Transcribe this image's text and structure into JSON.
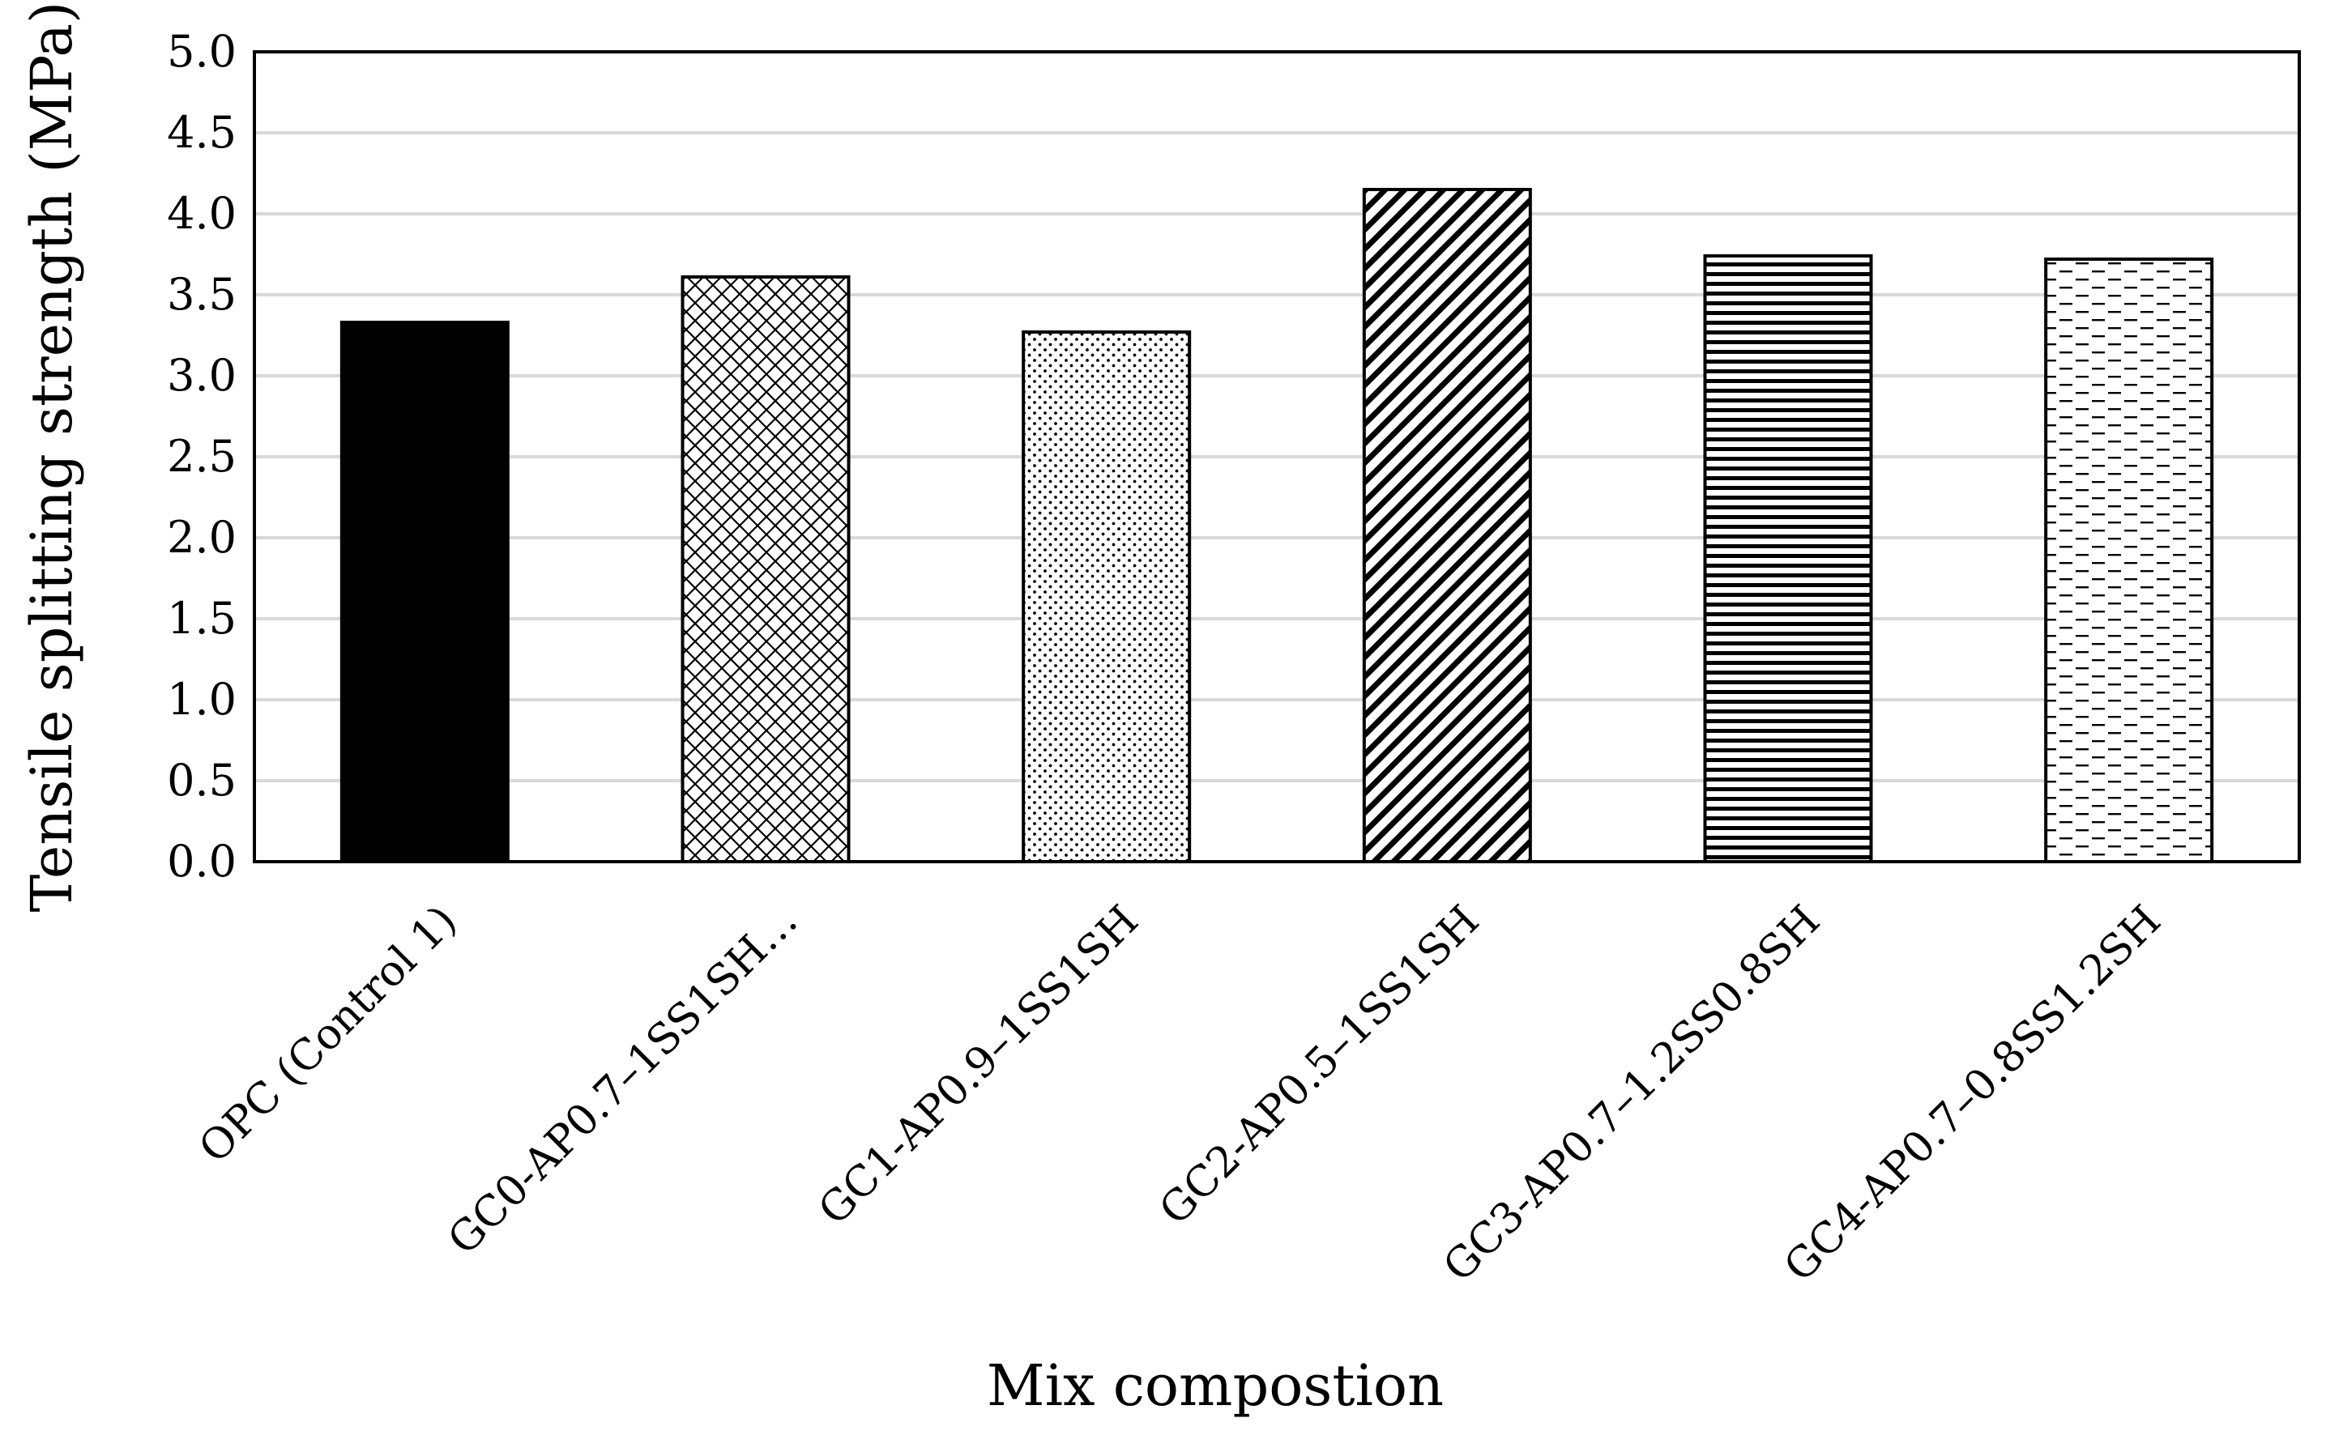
{
  "chart_data": {
    "type": "bar",
    "title": "",
    "xlabel": "Mix compostion",
    "ylabel": "Tensile splitting strength (MPa)",
    "ylim": [
      0,
      5.0
    ],
    "ytick_step": 0.5,
    "yticks": [
      "0.0",
      "0.5",
      "1.0",
      "1.5",
      "2.0",
      "2.5",
      "3.0",
      "3.5",
      "4.0",
      "4.5",
      "5.0"
    ],
    "grid": "horizontal",
    "legend": "none",
    "categories": [
      "OPC (Control 1)",
      "GC0-AP0.7–1SS1SH…",
      "GC1-AP0.9–1SS1SH",
      "GC2-AP0.5–1SS1SH",
      "GC3-AP0.7–1.2SS0.8SH",
      "GC4-AP0.7–0.8SS1.2SH"
    ],
    "values": [
      3.33,
      3.61,
      3.27,
      4.15,
      3.74,
      3.72
    ],
    "patterns": [
      "solid-black",
      "diagonal-crosshatch",
      "dots",
      "dense-diagonal-stripes",
      "horizontal-stripes",
      "dashed-horizontal"
    ],
    "colors": {
      "bar_outline": "#000000",
      "grid": "#d9d9d9",
      "frame": "#000000"
    }
  }
}
